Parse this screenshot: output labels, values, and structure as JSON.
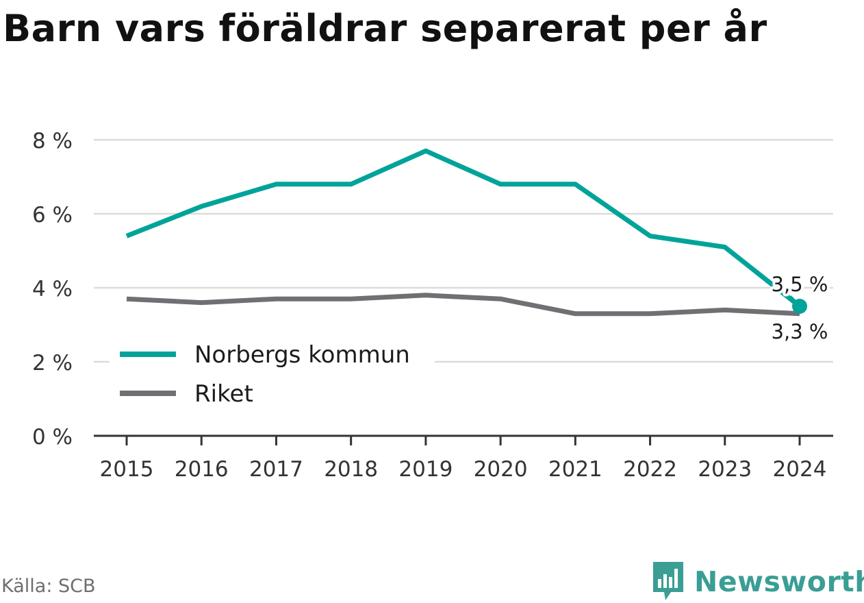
{
  "title": "Barn vars föräldrar separerat per år",
  "source": "Källa: SCB",
  "brand": {
    "name": "Newsworthy",
    "icon": "newsworthy-logo-icon",
    "color": "#3a9e95"
  },
  "chart_data": {
    "type": "line",
    "title": "Barn vars föräldrar separerat per år",
    "x": [
      "2015",
      "2016",
      "2017",
      "2018",
      "2019",
      "2020",
      "2021",
      "2022",
      "2023",
      "2024"
    ],
    "ylim": [
      0,
      8
    ],
    "yticks": [
      0,
      2,
      4,
      6,
      8
    ],
    "ytick_labels": [
      "0 %",
      "2 %",
      "4 %",
      "6 %",
      "8 %"
    ],
    "grid": true,
    "legend_position": "lower-left",
    "series": [
      {
        "name": "Norbergs kommun",
        "color": "#00a39a",
        "values": [
          5.4,
          6.2,
          6.8,
          6.8,
          7.7,
          6.8,
          6.8,
          5.4,
          5.1,
          3.5
        ],
        "end_label": "3,5 %"
      },
      {
        "name": "Riket",
        "color": "#707074",
        "values": [
          3.7,
          3.6,
          3.7,
          3.7,
          3.8,
          3.7,
          3.3,
          3.3,
          3.4,
          3.3
        ],
        "end_label": "3,3 %"
      }
    ]
  }
}
